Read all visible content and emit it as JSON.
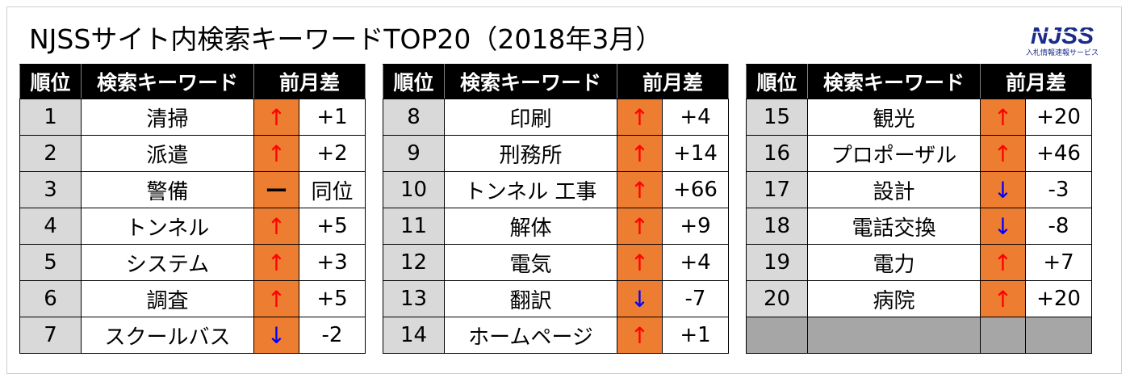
{
  "title": "NJSSサイト内検索キーワードTOP20（2018年3月）",
  "logo": {
    "mark": "NJSS",
    "tagline": "入札情報速報サービス"
  },
  "headers": {
    "rank": "順位",
    "keyword": "検索キーワード",
    "change": "前月差"
  },
  "colors": {
    "header_bg": "#000000",
    "rank_bg": "#d9d9d9",
    "arrow_bg": "#ed7d31",
    "up": "#ff0000",
    "down": "#0000ff",
    "empty_bg": "#a6a6a6"
  },
  "icons": {
    "up": "↑",
    "down": "↓",
    "flat": "ー"
  },
  "table_left": [
    {
      "rank": "1",
      "keyword": "清掃",
      "trend": "up",
      "diff": "+1"
    },
    {
      "rank": "2",
      "keyword": "派遣",
      "trend": "up",
      "diff": "+2"
    },
    {
      "rank": "3",
      "keyword": "警備",
      "trend": "flat",
      "diff": "同位"
    },
    {
      "rank": "4",
      "keyword": "トンネル",
      "trend": "up",
      "diff": "+5"
    },
    {
      "rank": "5",
      "keyword": "システム",
      "trend": "up",
      "diff": "+3"
    },
    {
      "rank": "6",
      "keyword": "調査",
      "trend": "up",
      "diff": "+5"
    },
    {
      "rank": "7",
      "keyword": "スクールバス",
      "trend": "down",
      "diff": "-2"
    }
  ],
  "table_middle": [
    {
      "rank": "8",
      "keyword": "印刷",
      "trend": "up",
      "diff": "+4"
    },
    {
      "rank": "9",
      "keyword": "刑務所",
      "trend": "up",
      "diff": "+14"
    },
    {
      "rank": "10",
      "keyword": "トンネル 工事",
      "trend": "up",
      "diff": "+66"
    },
    {
      "rank": "11",
      "keyword": "解体",
      "trend": "up",
      "diff": "+9"
    },
    {
      "rank": "12",
      "keyword": "電気",
      "trend": "up",
      "diff": "+4"
    },
    {
      "rank": "13",
      "keyword": "翻訳",
      "trend": "down",
      "diff": "-7"
    },
    {
      "rank": "14",
      "keyword": "ホームページ",
      "trend": "up",
      "diff": "+1"
    }
  ],
  "table_right": [
    {
      "rank": "15",
      "keyword": "観光",
      "trend": "up",
      "diff": "+20"
    },
    {
      "rank": "16",
      "keyword": "プロポーザル",
      "trend": "up",
      "diff": "+46"
    },
    {
      "rank": "17",
      "keyword": "設計",
      "trend": "down",
      "diff": "-3"
    },
    {
      "rank": "18",
      "keyword": "電話交換",
      "trend": "down",
      "diff": "-8"
    },
    {
      "rank": "19",
      "keyword": "電力",
      "trend": "up",
      "diff": "+7"
    },
    {
      "rank": "20",
      "keyword": "病院",
      "trend": "up",
      "diff": "+20"
    },
    {
      "rank": "",
      "keyword": "",
      "trend": "",
      "diff": ""
    }
  ]
}
